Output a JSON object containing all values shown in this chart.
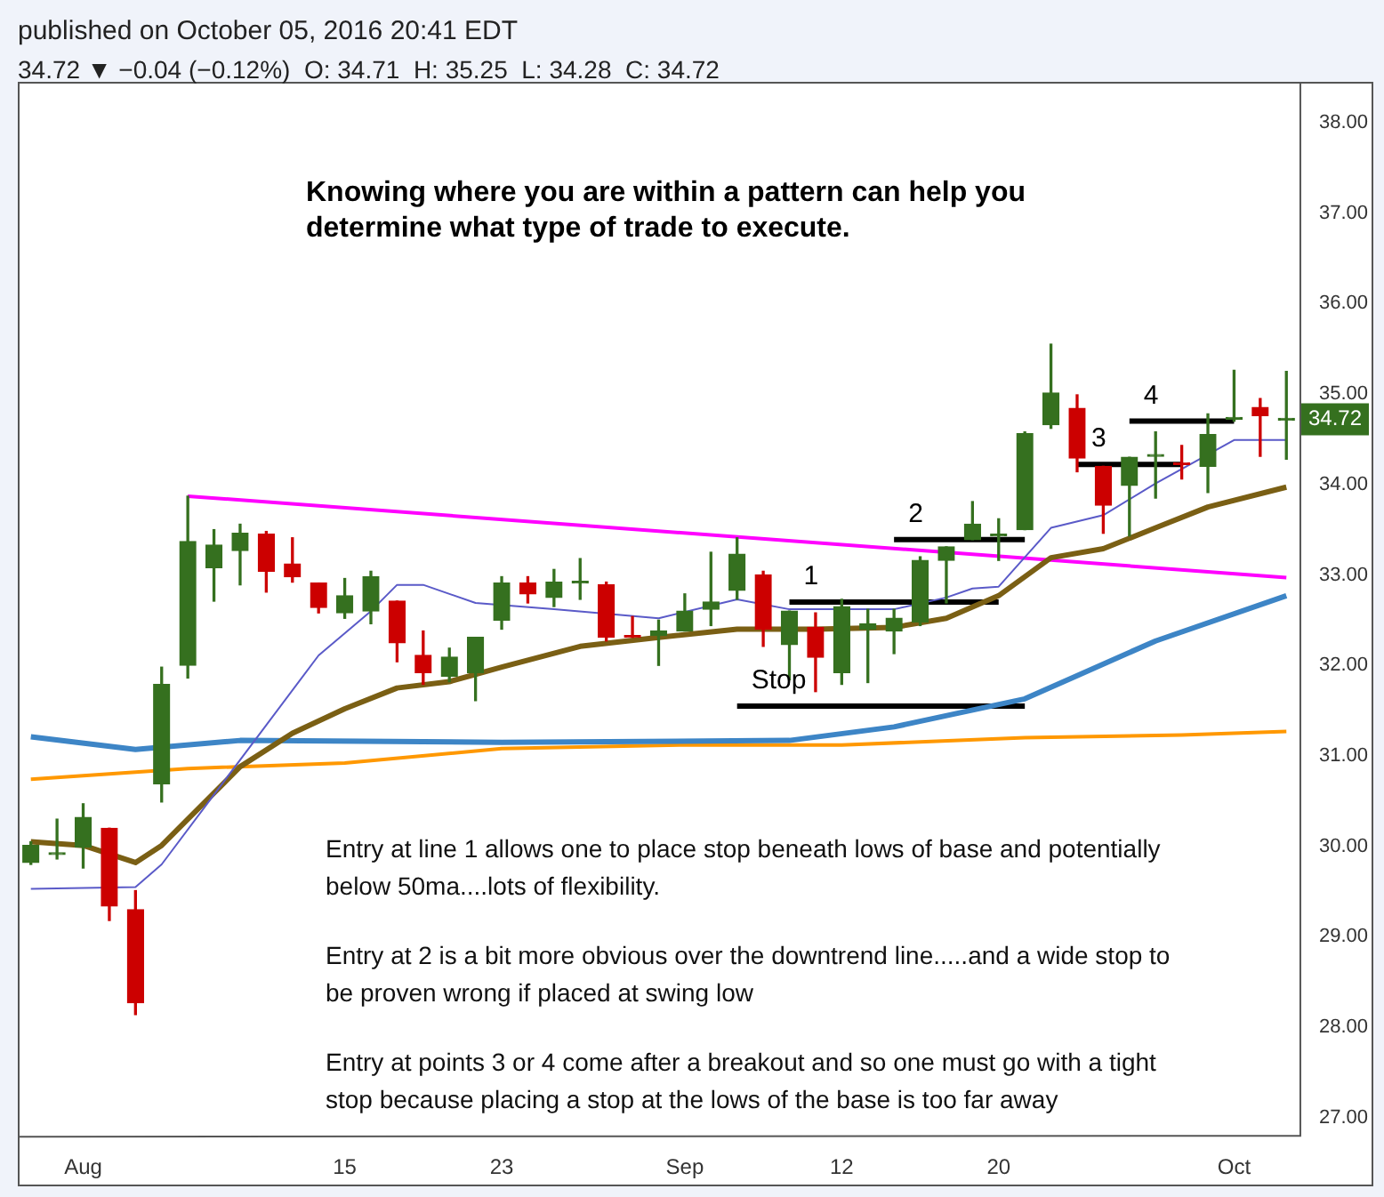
{
  "chart_data": {
    "type": "candlestick",
    "title": "Knowing where you are within a pattern can help you determine what type of trade to execute.",
    "subtitle": "34.72 ▼ −0.04 (−0.12%)  O: 34.71  H: 35.25  L: 34.28  C: 34.72",
    "categories": [
      null,
      null,
      "Aug",
      null,
      null,
      null,
      null,
      null,
      null,
      null,
      null,
      null,
      "15",
      null,
      null,
      null,
      null,
      null,
      "23",
      null,
      null,
      null,
      null,
      null,
      null,
      "Sep",
      null,
      null,
      null,
      null,
      null,
      "12",
      null,
      null,
      null,
      null,
      null,
      "20",
      null,
      null,
      null,
      null,
      null,
      null,
      null,
      null,
      "Oct",
      null,
      null
    ],
    "ohlc": [
      [
        29.82,
        30.05,
        29.8,
        30.01
      ],
      [
        29.91,
        30.3,
        29.86,
        29.91
      ],
      [
        29.99,
        30.47,
        29.76,
        30.32
      ],
      [
        30.2,
        30.2,
        29.18,
        29.34
      ],
      [
        29.3,
        29.51,
        28.14,
        28.27
      ],
      [
        30.69,
        31.98,
        30.49,
        31.79
      ],
      [
        32.0,
        33.87,
        31.86,
        33.37
      ],
      [
        33.08,
        33.5,
        32.71,
        33.33
      ],
      [
        33.27,
        33.56,
        32.89,
        33.46
      ],
      [
        33.45,
        33.48,
        32.81,
        33.04
      ],
      [
        33.12,
        33.41,
        32.92,
        32.98
      ],
      [
        32.91,
        32.91,
        32.58,
        32.64
      ],
      [
        32.58,
        32.96,
        32.52,
        32.77
      ],
      [
        32.6,
        33.04,
        32.46,
        32.98
      ],
      [
        32.71,
        32.71,
        32.04,
        32.25
      ],
      [
        32.11,
        32.38,
        31.79,
        31.92
      ],
      [
        31.88,
        32.19,
        31.82,
        32.09
      ],
      [
        31.92,
        32.31,
        31.61,
        32.31
      ],
      [
        32.5,
        32.98,
        32.4,
        32.91
      ],
      [
        32.91,
        32.98,
        32.69,
        32.79
      ],
      [
        32.75,
        33.06,
        32.65,
        32.92
      ],
      [
        32.91,
        33.18,
        32.73,
        32.91
      ],
      [
        32.89,
        32.92,
        32.27,
        32.31
      ],
      [
        32.33,
        32.54,
        32.31,
        32.31
      ],
      [
        32.33,
        32.5,
        32.0,
        32.38
      ],
      [
        32.38,
        32.79,
        32.38,
        32.6
      ],
      [
        32.62,
        33.25,
        32.44,
        32.7
      ],
      [
        32.83,
        33.41,
        32.73,
        33.23
      ],
      [
        33.0,
        33.04,
        32.21,
        32.4
      ],
      [
        32.23,
        32.6,
        31.84,
        32.6
      ],
      [
        32.42,
        32.58,
        31.71,
        32.09
      ],
      [
        31.92,
        32.73,
        31.79,
        32.65
      ],
      [
        32.4,
        32.62,
        31.81,
        32.46
      ],
      [
        32.38,
        32.62,
        32.13,
        32.52
      ],
      [
        32.48,
        33.2,
        32.44,
        33.16
      ],
      [
        33.16,
        33.31,
        32.69,
        33.31
      ],
      [
        33.39,
        33.81,
        33.39,
        33.56
      ],
      [
        33.43,
        33.62,
        33.16,
        33.45
      ],
      [
        33.5,
        34.58,
        33.5,
        34.56
      ],
      [
        34.66,
        35.55,
        34.62,
        35.01
      ],
      [
        34.84,
        34.99,
        34.14,
        34.29
      ],
      [
        34.2,
        34.2,
        33.46,
        33.77
      ],
      [
        33.99,
        34.3,
        33.43,
        34.3
      ],
      [
        34.31,
        34.58,
        33.85,
        34.33
      ],
      [
        34.24,
        34.43,
        34.06,
        34.22
      ],
      [
        34.2,
        34.78,
        33.91,
        34.55
      ],
      [
        34.72,
        35.26,
        34.7,
        34.74
      ],
      [
        34.85,
        34.95,
        34.31,
        34.76
      ],
      [
        34.71,
        35.25,
        34.28,
        34.72
      ]
    ],
    "colors": [
      "#35701f",
      "#35701f",
      "#35701f",
      "#cc0000",
      "#cc0000",
      "#35701f",
      "#35701f",
      "#35701f",
      "#35701f",
      "#cc0000",
      "#cc0000",
      "#cc0000",
      "#35701f",
      "#35701f",
      "#cc0000",
      "#cc0000",
      "#35701f",
      "#35701f",
      "#35701f",
      "#cc0000",
      "#35701f",
      "#35701f",
      "#cc0000",
      "#cc0000",
      "#35701f",
      "#35701f",
      "#35701f",
      "#35701f",
      "#cc0000",
      "#35701f",
      "#cc0000",
      "#35701f",
      "#35701f",
      "#35701f",
      "#35701f",
      "#35701f",
      "#35701f",
      "#35701f",
      "#35701f",
      "#35701f",
      "#cc0000",
      "#cc0000",
      "#35701f",
      "#35701f",
      "#cc0000",
      "#35701f",
      "#35701f",
      "#cc0000",
      "#35701f"
    ],
    "series": [
      {
        "type": "line",
        "color": "#5a5ac8",
        "values": [
          29.53,
          null,
          null,
          null,
          29.55,
          29.8,
          null,
          30.57,
          null,
          31.34,
          null,
          32.11,
          null,
          32.6,
          32.89,
          32.89,
          null,
          32.69,
          null,
          null,
          32.62,
          null,
          null,
          null,
          32.52,
          null,
          null,
          32.73,
          null,
          32.62,
          null,
          null,
          null,
          32.62,
          null,
          32.75,
          32.85,
          32.87,
          null,
          33.52,
          null,
          33.66,
          null,
          34.01,
          null,
          null,
          34.49,
          null,
          34.49
        ]
      },
      {
        "type": "line",
        "color": "#7a5f14",
        "values": [
          30.05,
          null,
          30.01,
          null,
          29.82,
          30.01,
          30.3,
          null,
          30.88,
          null,
          31.25,
          null,
          31.52,
          null,
          31.75,
          null,
          31.82,
          null,
          31.98,
          null,
          null,
          32.21,
          null,
          null,
          32.31,
          null,
          null,
          32.4,
          null,
          null,
          32.4,
          null,
          null,
          32.42,
          null,
          32.52,
          null,
          32.77,
          null,
          33.19,
          null,
          33.29,
          null,
          33.52,
          null,
          33.75,
          null,
          null,
          33.97
        ]
      },
      {
        "type": "line",
        "color": "#3d85c6",
        "values": [
          31.21,
          null,
          null,
          null,
          31.07,
          null,
          null,
          null,
          31.17,
          null,
          null,
          null,
          null,
          null,
          null,
          null,
          null,
          null,
          31.15,
          null,
          null,
          null,
          null,
          null,
          null,
          null,
          null,
          null,
          null,
          31.17,
          null,
          null,
          null,
          31.32,
          null,
          null,
          null,
          null,
          31.63,
          null,
          null,
          null,
          null,
          32.27,
          null,
          null,
          null,
          null,
          32.77
        ]
      },
      {
        "type": "line",
        "color": "#ff9800",
        "values": [
          30.74,
          null,
          null,
          null,
          null,
          null,
          30.86,
          null,
          null,
          null,
          null,
          null,
          30.92,
          null,
          null,
          null,
          null,
          null,
          31.08,
          null,
          null,
          null,
          null,
          null,
          null,
          31.12,
          null,
          null,
          null,
          null,
          null,
          31.12,
          null,
          null,
          null,
          null,
          null,
          null,
          31.2,
          null,
          null,
          null,
          null,
          null,
          31.23,
          null,
          null,
          null,
          31.27
        ]
      },
      {
        "type": "line",
        "color": "#ff00ff",
        "values": [
          null,
          null,
          null,
          null,
          null,
          null,
          33.87,
          null,
          null,
          null,
          null,
          null,
          null,
          null,
          null,
          null,
          null,
          null,
          null,
          null,
          null,
          null,
          null,
          null,
          null,
          null,
          null,
          null,
          null,
          null,
          null,
          null,
          null,
          null,
          null,
          null,
          null,
          null,
          null,
          null,
          null,
          null,
          null,
          null,
          null,
          null,
          null,
          null,
          32.97
        ]
      },
      {
        "type": "line",
        "name": "1",
        "color": "#000000",
        "values": [
          null,
          null,
          null,
          null,
          null,
          null,
          null,
          null,
          null,
          null,
          null,
          null,
          null,
          null,
          null,
          null,
          null,
          null,
          null,
          null,
          null,
          null,
          null,
          null,
          null,
          null,
          null,
          null,
          null,
          32.7,
          null,
          null,
          null,
          null,
          null,
          null,
          null,
          32.7,
          null,
          null,
          null,
          null,
          null,
          null,
          null,
          null,
          null,
          null,
          null
        ]
      },
      {
        "type": "line",
        "name": "2",
        "color": "#000000",
        "values": [
          null,
          null,
          null,
          null,
          null,
          null,
          null,
          null,
          null,
          null,
          null,
          null,
          null,
          null,
          null,
          null,
          null,
          null,
          null,
          null,
          null,
          null,
          null,
          null,
          null,
          null,
          null,
          null,
          null,
          null,
          null,
          null,
          null,
          33.39,
          null,
          null,
          null,
          null,
          33.39,
          null,
          null,
          null,
          null,
          null,
          null,
          null,
          null,
          null,
          null
        ]
      },
      {
        "type": "line",
        "name": "3",
        "color": "#000000",
        "values": [
          null,
          null,
          null,
          null,
          null,
          null,
          null,
          null,
          null,
          null,
          null,
          null,
          null,
          null,
          null,
          null,
          null,
          null,
          null,
          null,
          null,
          null,
          null,
          null,
          null,
          null,
          null,
          null,
          null,
          null,
          null,
          null,
          null,
          null,
          null,
          null,
          null,
          null,
          null,
          null,
          34.22,
          null,
          null,
          null,
          34.22,
          null,
          null,
          null,
          null
        ]
      },
      {
        "type": "line",
        "name": "4",
        "color": "#000000",
        "values": [
          null,
          null,
          null,
          null,
          null,
          null,
          null,
          null,
          null,
          null,
          null,
          null,
          null,
          null,
          null,
          null,
          null,
          null,
          null,
          null,
          null,
          null,
          null,
          null,
          null,
          null,
          null,
          null,
          null,
          null,
          null,
          null,
          null,
          null,
          null,
          null,
          null,
          null,
          null,
          null,
          null,
          null,
          34.7,
          null,
          null,
          null,
          34.7,
          null,
          null
        ]
      },
      {
        "type": "line",
        "name": "Stop",
        "color": "#000000",
        "values": [
          null,
          null,
          null,
          null,
          null,
          null,
          null,
          null,
          null,
          null,
          null,
          null,
          null,
          null,
          null,
          null,
          null,
          null,
          null,
          null,
          null,
          null,
          null,
          null,
          null,
          null,
          null,
          31.55,
          null,
          null,
          null,
          null,
          null,
          null,
          null,
          null,
          null,
          null,
          31.55,
          null,
          null,
          null,
          null,
          null,
          null,
          null,
          null,
          null,
          null
        ]
      }
    ],
    "ylim": [
      26.8,
      38.45
    ],
    "yticks": [
      {
        "value": 27,
        "label": "27.00"
      },
      {
        "value": 28,
        "label": "28.00"
      },
      {
        "value": 29,
        "label": "29.00"
      },
      {
        "value": 30,
        "label": "30.00"
      },
      {
        "value": 31,
        "label": "31.00"
      },
      {
        "value": 32,
        "label": "32.00"
      },
      {
        "value": 33,
        "label": "33.00"
      },
      {
        "value": 34,
        "label": "34.00"
      },
      {
        "value": 35,
        "label": "35.00"
      },
      {
        "value": 36,
        "label": "36.00"
      },
      {
        "value": 37,
        "label": "37.00"
      },
      {
        "value": 38,
        "label": "38.00"
      }
    ],
    "grid": false,
    "legend": false,
    "marker": "none",
    "line_style": "solid",
    "annotations": [
      "published on October 05, 2016 20:41 EDT",
      "Entry at line 1 allows one to place stop beneath lows of base and potentially below 50ma....lots of flexibility.",
      "Entry at 2 is a bit more obvious over the downtrend line.....and a wide stop to be proven wrong if placed at swing low",
      "Entry at points 3 or 4 come after a breakout and so one must go with a tight stop because placing a stop at the lows of the base is too far away",
      {
        "text": "34.72",
        "y": 34.72
      }
    ]
  }
}
